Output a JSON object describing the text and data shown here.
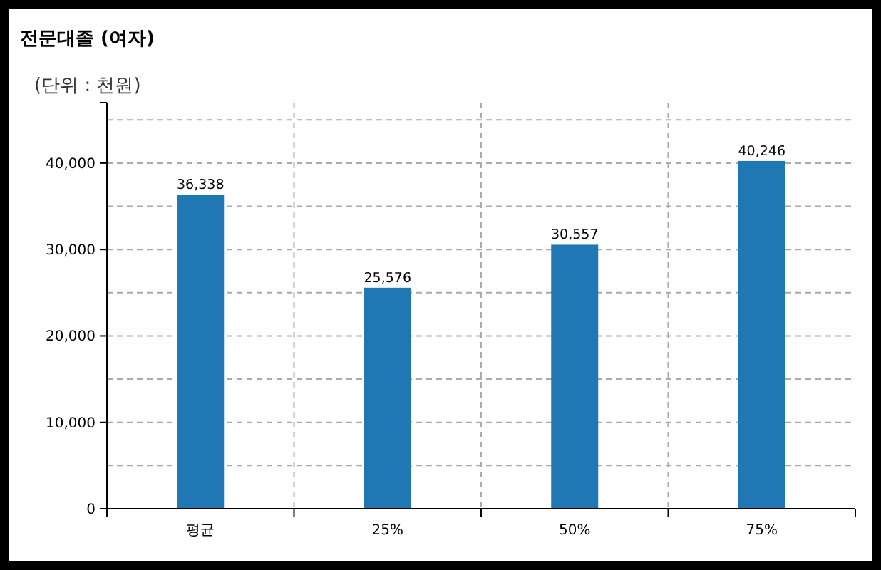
{
  "chart_data": {
    "type": "bar",
    "title": "전문대졸 (여자)",
    "ylabel": "(단위 : 천원)",
    "categories": [
      "평균",
      "25%",
      "50%",
      "75%"
    ],
    "values": [
      36338,
      25576,
      30557,
      40246
    ],
    "color": "#1f77b4",
    "value_labels": [
      "36,338",
      "25,576",
      "30,557",
      "40,246"
    ],
    "ylim": [
      0,
      47000
    ],
    "yticks": [
      {
        "value": 0,
        "label": "0"
      },
      {
        "value": 5000,
        "label": null
      },
      {
        "value": 10000,
        "label": "10,000"
      },
      {
        "value": 15000,
        "label": null
      },
      {
        "value": 20000,
        "label": "20,000"
      },
      {
        "value": 25000,
        "label": null
      },
      {
        "value": 30000,
        "label": "30,000"
      },
      {
        "value": 35000,
        "label": null
      },
      {
        "value": 40000,
        "label": "40,000"
      },
      {
        "value": 45000,
        "label": null
      }
    ],
    "grid": true
  }
}
